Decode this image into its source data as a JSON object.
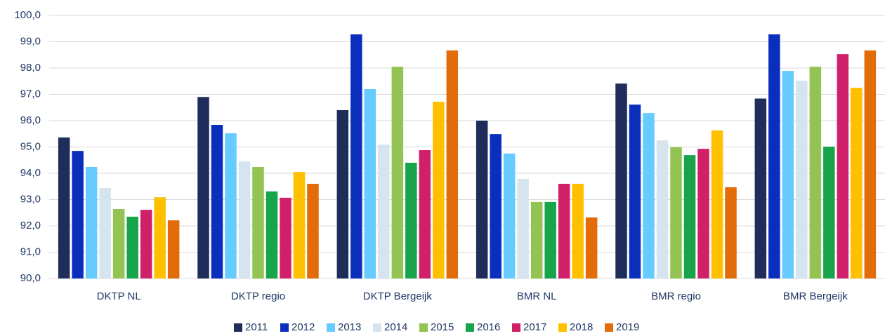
{
  "chart_data": {
    "type": "bar",
    "categories": [
      "DKTP NL",
      "DKTP regio",
      "DKTP Bergeijk",
      "BMR NL",
      "BMR regio",
      "BMR Bergeijk"
    ],
    "series": [
      {
        "name": "2011",
        "color": "#1f2d5a",
        "values": [
          95.36,
          96.9,
          96.4,
          96.0,
          97.41,
          96.84
        ]
      },
      {
        "name": "2012",
        "color": "#0a2fbd",
        "values": [
          94.85,
          95.84,
          99.28,
          95.49,
          96.61,
          99.28
        ]
      },
      {
        "name": "2013",
        "color": "#66ccff",
        "values": [
          94.24,
          95.52,
          97.2,
          94.75,
          96.29,
          97.89
        ]
      },
      {
        "name": "2014",
        "color": "#d6e4f0",
        "values": [
          93.44,
          94.45,
          95.09,
          93.79,
          95.25,
          97.52
        ]
      },
      {
        "name": "2015",
        "color": "#92c353",
        "values": [
          92.64,
          94.24,
          98.05,
          92.91,
          94.99,
          98.05
        ]
      },
      {
        "name": "2016",
        "color": "#17a44b",
        "values": [
          92.35,
          93.31,
          94.4,
          92.91,
          94.69,
          95.01
        ]
      },
      {
        "name": "2017",
        "color": "#d0206a",
        "values": [
          92.61,
          93.07,
          94.88,
          93.6,
          94.93,
          98.53
        ]
      },
      {
        "name": "2018",
        "color": "#ffc000",
        "values": [
          93.09,
          94.05,
          96.72,
          93.6,
          95.63,
          97.25
        ]
      },
      {
        "name": "2019",
        "color": "#e36c0a",
        "values": [
          92.21,
          93.6,
          98.67,
          92.32,
          93.47,
          98.67
        ]
      }
    ],
    "ylim": [
      90,
      100
    ],
    "yticks": [
      {
        "value": 90,
        "label": "90,0"
      },
      {
        "value": 91,
        "label": "91,0"
      },
      {
        "value": 92,
        "label": "92,0"
      },
      {
        "value": 93,
        "label": "93,0"
      },
      {
        "value": 94,
        "label": "94,0"
      },
      {
        "value": 95,
        "label": "95,0"
      },
      {
        "value": 96,
        "label": "96,0"
      },
      {
        "value": 97,
        "label": "97,0"
      },
      {
        "value": 98,
        "label": "98,0"
      },
      {
        "value": 99,
        "label": "99,0"
      },
      {
        "value": 100,
        "label": "100,0"
      }
    ],
    "grid": true,
    "legend": "bottom"
  }
}
